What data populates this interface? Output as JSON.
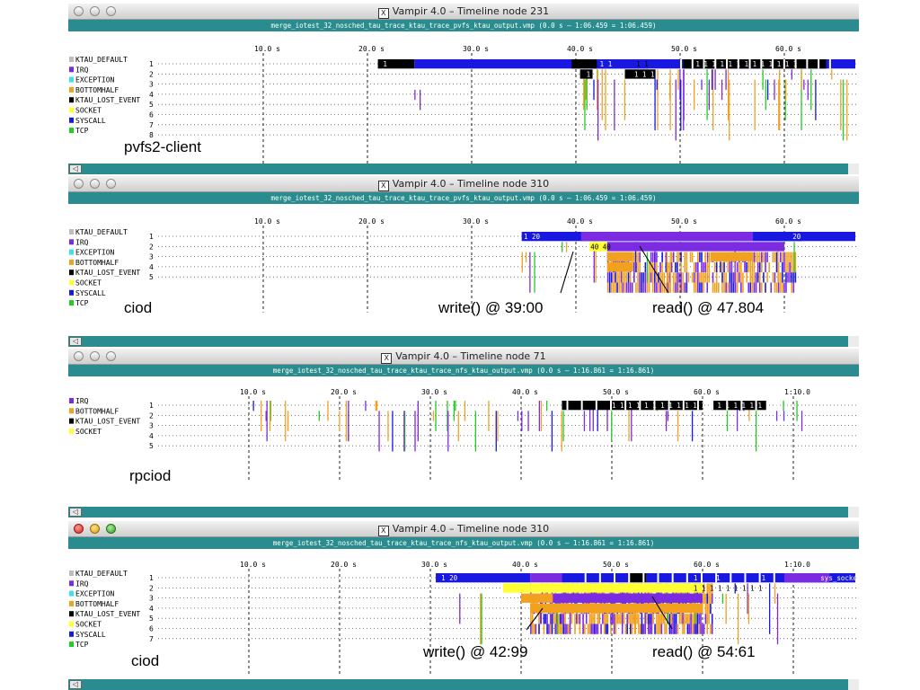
{
  "windows": [
    {
      "id": "w1",
      "title": "Vampir 4.0 – Timeline node 231",
      "file_info": "merge_iotest_32_nosched_tau_trace_ktau_trace_pvfs_ktau_output.vmp (0.0 s – 1:06.459 = 1:06.459)",
      "active": false,
      "caption": "pvfs2-client",
      "legend": [
        {
          "label": "KTAU_DEFAULT",
          "color": "#bdbdbd"
        },
        {
          "label": "IRQ",
          "color": "#7b2be0"
        },
        {
          "label": "EXCEPTION",
          "color": "#3fe0e8"
        },
        {
          "label": "BOTTOMHALF",
          "color": "#f2a020"
        },
        {
          "label": "KTAU_LOST_EVENT",
          "color": "#000000"
        },
        {
          "label": "SOCKET",
          "color": "#ffff33"
        },
        {
          "label": "SYSCALL",
          "color": "#1818e0"
        },
        {
          "label": "TCP",
          "color": "#22cc22"
        }
      ],
      "rows": [
        "1",
        "2",
        "3",
        "4",
        "5",
        "6",
        "7",
        "8"
      ],
      "ticks": [
        {
          "t": 10,
          "label": "10.0 s"
        },
        {
          "t": 20,
          "label": "20.0 s"
        },
        {
          "t": 30,
          "label": "30.0 s"
        },
        {
          "t": 40,
          "label": "40.0 s"
        },
        {
          "t": 50,
          "label": "50.0 s"
        },
        {
          "t": 60,
          "label": "60.0 s"
        }
      ],
      "duration": 66.459,
      "bar_labels": [
        {
          "t": 21.5,
          "row": 1,
          "text": "1",
          "color": "#ffffff"
        },
        {
          "t": 40.2,
          "row": 1,
          "text": "1 1 1",
          "color": "#000000"
        },
        {
          "t": 42.3,
          "row": 1,
          "text": "1 1",
          "color": "#ffffff"
        },
        {
          "t": 45.8,
          "row": 1,
          "text": "1 1",
          "color": "#000000"
        },
        {
          "t": 51.5,
          "row": 1,
          "text": "1 1 1 1 1 1 1 1 1 1 1 1 1",
          "color": "#ffffff"
        },
        {
          "t": 41.0,
          "row": 2,
          "text": "1",
          "color": "#ffffff"
        },
        {
          "t": 45.6,
          "row": 2,
          "text": "1 1 1",
          "color": "#ffffff"
        }
      ]
    },
    {
      "id": "w2",
      "title": "Vampir 4.0 – Timeline node 310",
      "file_info": "merge_iotest_32_nosched_tau_trace_ktau_trace_pvfs_ktau_output.vmp (0.0 s – 1:06.459 = 1:06.459)",
      "active": false,
      "caption": "ciod",
      "annotations": [
        "write() @ 39:00",
        "read() @ 47.804"
      ],
      "legend": [
        {
          "label": "KTAU_DEFAULT",
          "color": "#bdbdbd"
        },
        {
          "label": "IRQ",
          "color": "#7b2be0"
        },
        {
          "label": "EXCEPTION",
          "color": "#3fe0e8"
        },
        {
          "label": "BOTTOMHALF",
          "color": "#f2a020"
        },
        {
          "label": "KTAU_LOST_EVENT",
          "color": "#000000"
        },
        {
          "label": "SOCKET",
          "color": "#ffff33"
        },
        {
          "label": "SYSCALL",
          "color": "#1818e0"
        },
        {
          "label": "TCP",
          "color": "#22cc22"
        }
      ],
      "rows": [
        "1",
        "2",
        "3",
        "4",
        "5"
      ],
      "ticks": [
        {
          "t": 10,
          "label": "10.0 s"
        },
        {
          "t": 20,
          "label": "20.0 s"
        },
        {
          "t": 30,
          "label": "30.0 s"
        },
        {
          "t": 40,
          "label": "40.0 s"
        },
        {
          "t": 50,
          "label": "50.0 s"
        },
        {
          "t": 60,
          "label": "60.0 s"
        }
      ],
      "duration": 66.459,
      "bar_labels": [
        {
          "t": 35.0,
          "row": 1,
          "text": "1 20",
          "color": "#ffffff"
        },
        {
          "t": 60.8,
          "row": 1,
          "text": "20",
          "color": "#ffffff"
        },
        {
          "t": 41.4,
          "row": 2,
          "text": "40 40",
          "color": "#000000"
        }
      ]
    },
    {
      "id": "w3",
      "title": "Vampir 4.0 – Timeline node 71",
      "file_info": "merge_iotest_32_nosched_tau_trace_ktau_trace_nfs_ktau_output.vmp (0.0 s – 1:16.861 = 1:16.861)",
      "active": false,
      "caption": "rpciod",
      "legend": [
        {
          "label": "IRQ",
          "color": "#7b2be0"
        },
        {
          "label": "BOTTOMHALF",
          "color": "#f2a020"
        },
        {
          "label": "KTAU_LOST_EVENT",
          "color": "#000000"
        },
        {
          "label": "SOCKET",
          "color": "#ffff33"
        }
      ],
      "rows": [
        "1",
        "2",
        "3",
        "4",
        "5"
      ],
      "ticks": [
        {
          "t": 10,
          "label": "10.0 s"
        },
        {
          "t": 20,
          "label": "20.0 s"
        },
        {
          "t": 30,
          "label": "30.0 s"
        },
        {
          "t": 40,
          "label": "40.0 s"
        },
        {
          "t": 50,
          "label": "50.0 s"
        },
        {
          "t": 60,
          "label": "60.0 s"
        },
        {
          "t": 70,
          "label": "1:10.0"
        }
      ],
      "duration": 76.861,
      "bar_labels": [
        {
          "t": 50.0,
          "row": 1,
          "text": "1 1 1 1 1 1 1 1 1 1 1 1 1 1 1 1 1 1 1   1 1",
          "color": "#ffffff"
        }
      ]
    },
    {
      "id": "w4",
      "title": "Vampir 4.0 – Timeline node 310",
      "file_info": "merge_iotest_32_nosched_tau_trace_ktau_trace_nfs_ktau_output.vmp (0.0 s – 1:16.861 = 1:16.861)",
      "active": true,
      "caption": "ciod",
      "annotations": [
        "write() @ 42:99",
        "read() @ 54:61"
      ],
      "legend": [
        {
          "label": "KTAU_DEFAULT",
          "color": "#bdbdbd"
        },
        {
          "label": "IRQ",
          "color": "#7b2be0"
        },
        {
          "label": "EXCEPTION",
          "color": "#3fe0e8"
        },
        {
          "label": "BOTTOMHALF",
          "color": "#f2a020"
        },
        {
          "label": "KTAU_LOST_EVENT",
          "color": "#000000"
        },
        {
          "label": "SOCKET",
          "color": "#ffff33"
        },
        {
          "label": "SYSCALL",
          "color": "#1818e0"
        },
        {
          "label": "TCP",
          "color": "#22cc22"
        }
      ],
      "rows": [
        "1",
        "2",
        "3",
        "4",
        "5",
        "6",
        "7"
      ],
      "ticks": [
        {
          "t": 10,
          "label": "10.0 s"
        },
        {
          "t": 20,
          "label": "20.0 s"
        },
        {
          "t": 30,
          "label": "30.0 s"
        },
        {
          "t": 40,
          "label": "40.0 s"
        },
        {
          "t": 50,
          "label": "50.0 s"
        },
        {
          "t": 60,
          "label": "60.0 s"
        },
        {
          "t": 70,
          "label": "1:10.0"
        }
      ],
      "duration": 76.861,
      "bar_labels": [
        {
          "t": 31.2,
          "row": 1,
          "text": "1 20",
          "color": "#ffffff"
        },
        {
          "t": 59.0,
          "row": 1,
          "text": "1",
          "color": "#ffffff"
        },
        {
          "t": 61.5,
          "row": 1,
          "text": "1",
          "color": "#ffffff"
        },
        {
          "t": 66.5,
          "row": 1,
          "text": "1",
          "color": "#ffffff"
        },
        {
          "t": 73.0,
          "row": 1,
          "text": "sys_socketcall",
          "color": "#ffffff"
        },
        {
          "t": 59.0,
          "row": 2,
          "text": "1 1 1 1 1 1 1 1 1",
          "color": "#000000"
        }
      ]
    }
  ]
}
